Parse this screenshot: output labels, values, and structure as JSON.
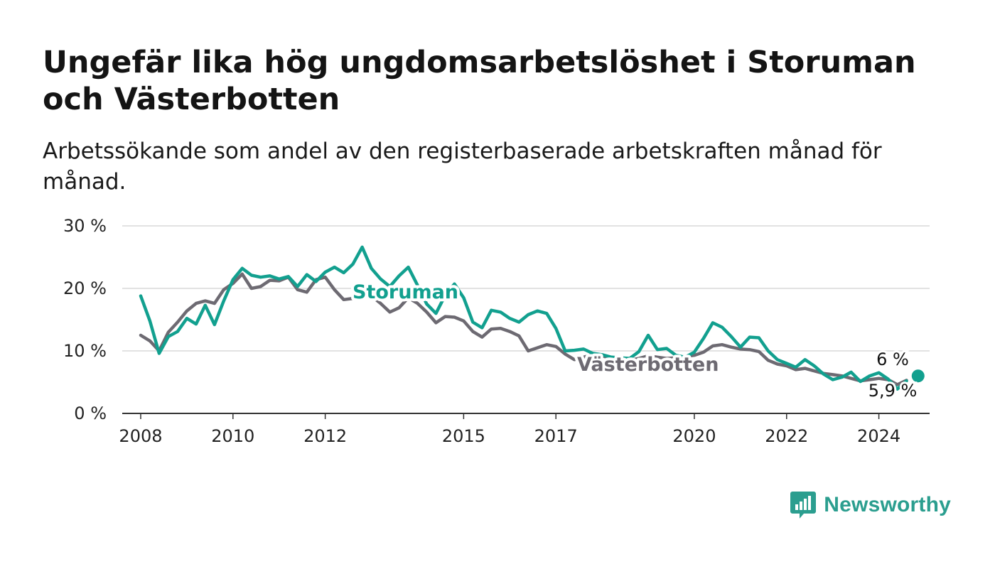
{
  "chart_data": {
    "type": "line",
    "title": "Ungefär lika hög ungdomsarbetslöshet i Storuman och Västerbotten",
    "subtitle": "Arbetssökande som andel av den registerbaserade arbetskraften månad för månad.",
    "ylim": [
      0,
      30
    ],
    "y_ticks": [
      0,
      10,
      20,
      30
    ],
    "y_tick_labels": [
      "0 %",
      "10 %",
      "20 %",
      "30 %"
    ],
    "x_ticks": [
      2008,
      2010,
      2012,
      2015,
      2017,
      2020,
      2022,
      2024
    ],
    "x_tick_labels": [
      "2008",
      "2010",
      "2012",
      "2015",
      "2017",
      "2020",
      "2022",
      "2024"
    ],
    "grid": true,
    "legend": "inline labels",
    "series": [
      {
        "name": "Storuman",
        "color": "#12a08f",
        "end_label": "6 %",
        "points": [
          [
            2008.0,
            18.8
          ],
          [
            2008.2,
            14.8
          ],
          [
            2008.4,
            9.6
          ],
          [
            2008.6,
            12.3
          ],
          [
            2008.8,
            13.1
          ],
          [
            2009.0,
            15.2
          ],
          [
            2009.2,
            14.3
          ],
          [
            2009.4,
            17.3
          ],
          [
            2009.6,
            14.2
          ],
          [
            2009.8,
            18.0
          ],
          [
            2010.0,
            21.4
          ],
          [
            2010.2,
            23.2
          ],
          [
            2010.4,
            22.1
          ],
          [
            2010.6,
            21.8
          ],
          [
            2010.8,
            22.0
          ],
          [
            2011.0,
            21.5
          ],
          [
            2011.2,
            21.9
          ],
          [
            2011.4,
            20.3
          ],
          [
            2011.6,
            22.2
          ],
          [
            2011.8,
            21.1
          ],
          [
            2012.0,
            22.6
          ],
          [
            2012.2,
            23.4
          ],
          [
            2012.4,
            22.5
          ],
          [
            2012.6,
            23.9
          ],
          [
            2012.8,
            26.6
          ],
          [
            2013.0,
            23.2
          ],
          [
            2013.2,
            21.5
          ],
          [
            2013.4,
            20.3
          ],
          [
            2013.6,
            22.0
          ],
          [
            2013.8,
            23.4
          ],
          [
            2014.0,
            20.5
          ],
          [
            2014.2,
            17.5
          ],
          [
            2014.4,
            16.0
          ],
          [
            2014.6,
            18.9
          ],
          [
            2014.8,
            20.7
          ],
          [
            2015.0,
            18.5
          ],
          [
            2015.2,
            14.6
          ],
          [
            2015.4,
            13.7
          ],
          [
            2015.6,
            16.5
          ],
          [
            2015.8,
            16.2
          ],
          [
            2016.0,
            15.2
          ],
          [
            2016.2,
            14.6
          ],
          [
            2016.4,
            15.8
          ],
          [
            2016.6,
            16.4
          ],
          [
            2016.8,
            16.0
          ],
          [
            2017.0,
            13.6
          ],
          [
            2017.2,
            10.0
          ],
          [
            2017.4,
            10.1
          ],
          [
            2017.6,
            10.3
          ],
          [
            2017.8,
            9.6
          ],
          [
            2018.0,
            9.4
          ],
          [
            2018.2,
            9.0
          ],
          [
            2018.4,
            8.9
          ],
          [
            2018.6,
            8.8
          ],
          [
            2018.8,
            9.9
          ],
          [
            2019.0,
            12.5
          ],
          [
            2019.2,
            10.2
          ],
          [
            2019.4,
            10.4
          ],
          [
            2019.6,
            9.3
          ],
          [
            2019.8,
            9.0
          ],
          [
            2020.0,
            9.8
          ],
          [
            2020.2,
            12.0
          ],
          [
            2020.4,
            14.5
          ],
          [
            2020.6,
            13.8
          ],
          [
            2020.8,
            12.3
          ],
          [
            2021.0,
            10.6
          ],
          [
            2021.2,
            12.2
          ],
          [
            2021.4,
            12.1
          ],
          [
            2021.6,
            10.0
          ],
          [
            2021.8,
            8.6
          ],
          [
            2022.0,
            8.0
          ],
          [
            2022.2,
            7.4
          ],
          [
            2022.4,
            8.6
          ],
          [
            2022.6,
            7.6
          ],
          [
            2022.8,
            6.3
          ],
          [
            2023.0,
            5.4
          ],
          [
            2023.2,
            5.8
          ],
          [
            2023.4,
            6.6
          ],
          [
            2023.6,
            5.1
          ],
          [
            2023.8,
            6.0
          ],
          [
            2024.0,
            6.5
          ],
          [
            2024.2,
            5.5
          ],
          [
            2024.4,
            3.9
          ],
          [
            2024.6,
            5.2
          ],
          [
            2024.85,
            6.0
          ]
        ]
      },
      {
        "name": "Västerbotten",
        "color": "#6d6a72",
        "end_label": "5,9 %",
        "points": [
          [
            2008.0,
            12.5
          ],
          [
            2008.2,
            11.6
          ],
          [
            2008.4,
            10.0
          ],
          [
            2008.6,
            13.0
          ],
          [
            2008.8,
            14.6
          ],
          [
            2009.0,
            16.4
          ],
          [
            2009.2,
            17.6
          ],
          [
            2009.4,
            18.0
          ],
          [
            2009.6,
            17.6
          ],
          [
            2009.8,
            19.8
          ],
          [
            2010.0,
            20.8
          ],
          [
            2010.2,
            22.3
          ],
          [
            2010.4,
            20.0
          ],
          [
            2010.6,
            20.3
          ],
          [
            2010.8,
            21.3
          ],
          [
            2011.0,
            21.2
          ],
          [
            2011.2,
            21.8
          ],
          [
            2011.4,
            19.8
          ],
          [
            2011.6,
            19.4
          ],
          [
            2011.8,
            21.4
          ],
          [
            2012.0,
            21.8
          ],
          [
            2012.2,
            19.8
          ],
          [
            2012.4,
            18.2
          ],
          [
            2012.6,
            18.4
          ],
          [
            2012.8,
            19.0
          ],
          [
            2013.0,
            18.8
          ],
          [
            2013.2,
            17.6
          ],
          [
            2013.4,
            16.2
          ],
          [
            2013.6,
            16.9
          ],
          [
            2013.8,
            18.5
          ],
          [
            2014.0,
            17.6
          ],
          [
            2014.2,
            16.2
          ],
          [
            2014.4,
            14.5
          ],
          [
            2014.6,
            15.5
          ],
          [
            2014.8,
            15.4
          ],
          [
            2015.0,
            14.8
          ],
          [
            2015.2,
            13.1
          ],
          [
            2015.4,
            12.2
          ],
          [
            2015.6,
            13.5
          ],
          [
            2015.8,
            13.6
          ],
          [
            2016.0,
            13.1
          ],
          [
            2016.2,
            12.4
          ],
          [
            2016.4,
            10.0
          ],
          [
            2016.6,
            10.5
          ],
          [
            2016.8,
            11.0
          ],
          [
            2017.0,
            10.7
          ],
          [
            2017.2,
            9.5
          ],
          [
            2017.4,
            8.6
          ],
          [
            2017.6,
            9.0
          ],
          [
            2017.8,
            9.4
          ],
          [
            2018.0,
            9.2
          ],
          [
            2018.2,
            8.8
          ],
          [
            2018.4,
            8.6
          ],
          [
            2018.6,
            8.5
          ],
          [
            2018.8,
            8.8
          ],
          [
            2019.0,
            9.2
          ],
          [
            2019.2,
            9.0
          ],
          [
            2019.4,
            8.8
          ],
          [
            2019.6,
            8.9
          ],
          [
            2019.8,
            9.1
          ],
          [
            2020.0,
            9.3
          ],
          [
            2020.2,
            9.8
          ],
          [
            2020.4,
            10.8
          ],
          [
            2020.6,
            11.0
          ],
          [
            2020.8,
            10.6
          ],
          [
            2021.0,
            10.3
          ],
          [
            2021.2,
            10.2
          ],
          [
            2021.4,
            9.9
          ],
          [
            2021.6,
            8.5
          ],
          [
            2021.8,
            7.9
          ],
          [
            2022.0,
            7.6
          ],
          [
            2022.2,
            7.0
          ],
          [
            2022.4,
            7.2
          ],
          [
            2022.6,
            6.8
          ],
          [
            2022.8,
            6.4
          ],
          [
            2023.0,
            6.2
          ],
          [
            2023.2,
            6.0
          ],
          [
            2023.4,
            5.6
          ],
          [
            2023.6,
            5.2
          ],
          [
            2023.8,
            5.4
          ],
          [
            2024.0,
            5.6
          ],
          [
            2024.2,
            5.4
          ],
          [
            2024.4,
            4.6
          ],
          [
            2024.6,
            5.3
          ],
          [
            2024.85,
            5.9
          ]
        ]
      }
    ]
  },
  "brand": {
    "name": "Newsworthy",
    "color": "#2b9e8f"
  }
}
